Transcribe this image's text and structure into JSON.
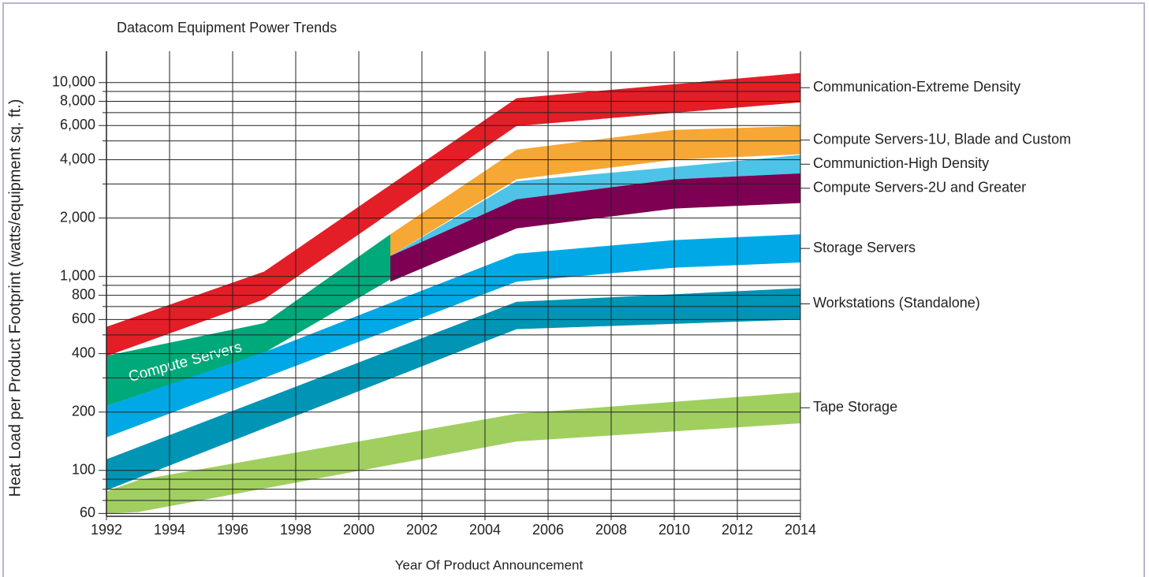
{
  "chart_data": {
    "type": "band",
    "title": "Datacom Equipment Power Trends",
    "x_label": "Year Of Product Announcement",
    "y_label": "Heat Load per Product Footprint (watts/equipment sq. ft.)",
    "log_scale_y": true,
    "grid": true,
    "xlim": [
      1992,
      2014
    ],
    "xticks": [
      1992,
      1994,
      1996,
      1998,
      2000,
      2002,
      2004,
      2006,
      2008,
      2010,
      2012,
      2014
    ],
    "ylim": [
      58,
      14500
    ],
    "yticks": [
      60,
      100,
      200,
      400,
      600,
      800,
      {
        "value": 1000,
        "label": "1,000"
      },
      {
        "value": 2000,
        "label": "2,000"
      },
      {
        "value": 4000,
        "label": "4,000"
      },
      {
        "value": 6000,
        "label": "6,000"
      },
      {
        "value": 8000,
        "label": "8,000"
      },
      {
        "value": 10000,
        "label": "10,000"
      }
    ],
    "minor_yticks": [
      70,
      80,
      90,
      300,
      500,
      700,
      900,
      3000,
      5000,
      7000,
      9000
    ],
    "series": [
      {
        "name": "Communication-Extreme Density",
        "color": "#e31e26",
        "x": [
          1992,
          1997,
          2005,
          2014
        ],
        "high": [
          550,
          1060,
          8300,
          11200
        ],
        "low": [
          388,
          762,
          5970,
          7900
        ]
      },
      {
        "name": "Compute Servers",
        "color": "#00a97a",
        "x": [
          1992,
          1997,
          2001
        ],
        "high": [
          390,
          575,
          1650
        ],
        "low": [
          215,
          404,
          965
        ]
      },
      {
        "name": "Compute Servers-1U, Blade and Custom",
        "color": "#f7a733",
        "x": [
          2001,
          2005,
          2010,
          2014
        ],
        "high": [
          1650,
          4500,
          5700,
          5970
        ],
        "low": [
          1275,
          3170,
          4000,
          4270
        ]
      },
      {
        "name": "Communiction-High Density",
        "color": "#4dc3e8",
        "x": [
          2001,
          2005,
          2010,
          2014
        ],
        "high": [
          1275,
          3100,
          3670,
          4230
        ],
        "low": [
          1275,
          2500,
          3170,
          3400
        ]
      },
      {
        "name": "Compute Servers-2U and Greater",
        "color": "#7d0052",
        "x": [
          2001,
          2005,
          2010,
          2014
        ],
        "high": [
          1275,
          2500,
          3170,
          3400
        ],
        "low": [
          940,
          1770,
          2240,
          2390
        ]
      },
      {
        "name": "Storage Servers",
        "color": "#00a9e6",
        "x": [
          1992,
          1997,
          2005,
          2010,
          2014
        ],
        "high": [
          215,
          407,
          1310,
          1540,
          1650
        ],
        "low": [
          148,
          300,
          940,
          1110,
          1180
        ]
      },
      {
        "name": "Workstations (Standalone)",
        "color": "#0095b4",
        "x": [
          1992,
          2005,
          2014
        ],
        "high": [
          114,
          740,
          870
        ],
        "low": [
          79,
          535,
          600
        ]
      },
      {
        "name": "Tape Storage",
        "color": "#a0cf5f",
        "x": [
          1992,
          1993,
          2005,
          2014
        ],
        "high": [
          78,
          89,
          196,
          253
        ],
        "low": [
          60,
          61,
          141,
          175
        ]
      }
    ]
  }
}
